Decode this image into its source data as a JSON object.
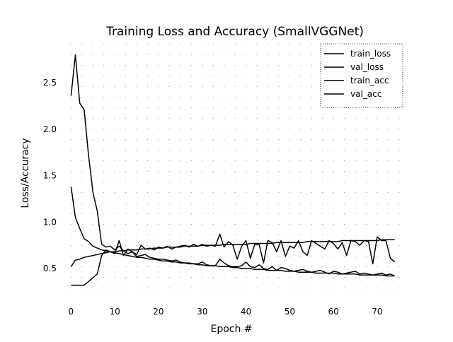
{
  "chart_data": {
    "type": "line",
    "title": "Training Loss and Accuracy (SmallVGGNet)",
    "xlabel": "Epoch #",
    "ylabel": "Loss/Accuracy",
    "xlim": [
      -2,
      76
    ],
    "ylim": [
      0.18,
      2.92
    ],
    "xticks": [
      0,
      10,
      20,
      30,
      40,
      50,
      60,
      70
    ],
    "yticks": [
      0.5,
      1.0,
      1.5,
      2.0,
      2.5
    ],
    "grid": "dotted",
    "legend": "upper right",
    "line_color": "#000000",
    "series": [
      {
        "name": "train_loss",
        "x": [
          0,
          1,
          2,
          3,
          4,
          5,
          6,
          7,
          8,
          9,
          10,
          11,
          12,
          13,
          14,
          15,
          16,
          17,
          18,
          19,
          20,
          21,
          22,
          23,
          24,
          25,
          26,
          27,
          28,
          29,
          30,
          31,
          32,
          33,
          34,
          35,
          36,
          37,
          38,
          39,
          40,
          41,
          42,
          43,
          44,
          45,
          46,
          47,
          48,
          49,
          50,
          51,
          52,
          53,
          54,
          55,
          56,
          57,
          58,
          59,
          60,
          61,
          62,
          63,
          64,
          65,
          66,
          67,
          68,
          69,
          70,
          71,
          72,
          73,
          74
        ],
        "values": [
          1.38,
          1.05,
          0.93,
          0.82,
          0.79,
          0.74,
          0.72,
          0.7,
          0.69,
          0.68,
          0.67,
          0.66,
          0.65,
          0.64,
          0.63,
          0.62,
          0.62,
          0.61,
          0.6,
          0.6,
          0.59,
          0.58,
          0.58,
          0.57,
          0.57,
          0.56,
          0.56,
          0.55,
          0.55,
          0.54,
          0.54,
          0.53,
          0.53,
          0.53,
          0.52,
          0.52,
          0.52,
          0.51,
          0.51,
          0.5,
          0.5,
          0.5,
          0.49,
          0.49,
          0.49,
          0.48,
          0.48,
          0.48,
          0.48,
          0.47,
          0.47,
          0.47,
          0.46,
          0.46,
          0.46,
          0.46,
          0.45,
          0.45,
          0.45,
          0.45,
          0.45,
          0.44,
          0.44,
          0.44,
          0.44,
          0.44,
          0.43,
          0.43,
          0.43,
          0.43,
          0.43,
          0.43,
          0.42,
          0.42,
          0.42
        ]
      },
      {
        "name": "val_loss",
        "x": [
          0,
          1,
          2,
          3,
          4,
          5,
          6,
          7,
          8,
          9,
          10,
          11,
          12,
          13,
          14,
          15,
          16,
          17,
          18,
          19,
          20,
          21,
          22,
          23,
          24,
          25,
          26,
          27,
          28,
          29,
          30,
          31,
          32,
          33,
          34,
          35,
          36,
          37,
          38,
          39,
          40,
          41,
          42,
          43,
          44,
          45,
          46,
          47,
          48,
          49,
          50,
          51,
          52,
          53,
          54,
          55,
          56,
          57,
          58,
          59,
          60,
          61,
          62,
          63,
          64,
          65,
          66,
          67,
          68,
          69,
          70,
          71,
          72,
          73,
          74
        ],
        "values": [
          2.36,
          2.8,
          2.28,
          2.21,
          1.72,
          1.32,
          1.12,
          0.76,
          0.73,
          0.74,
          0.7,
          0.74,
          0.69,
          0.66,
          0.68,
          0.63,
          0.64,
          0.65,
          0.62,
          0.61,
          0.6,
          0.6,
          0.59,
          0.58,
          0.59,
          0.57,
          0.56,
          0.56,
          0.55,
          0.55,
          0.57,
          0.54,
          0.53,
          0.53,
          0.6,
          0.56,
          0.53,
          0.52,
          0.52,
          0.53,
          0.57,
          0.52,
          0.51,
          0.54,
          0.5,
          0.49,
          0.52,
          0.48,
          0.51,
          0.5,
          0.48,
          0.47,
          0.48,
          0.49,
          0.47,
          0.46,
          0.47,
          0.48,
          0.46,
          0.44,
          0.47,
          0.46,
          0.44,
          0.45,
          0.46,
          0.47,
          0.44,
          0.45,
          0.44,
          0.43,
          0.44,
          0.45,
          0.43,
          0.44,
          0.42
        ]
      },
      {
        "name": "train_acc",
        "x": [
          0,
          1,
          2,
          3,
          4,
          5,
          6,
          7,
          8,
          9,
          10,
          11,
          12,
          13,
          14,
          15,
          16,
          17,
          18,
          19,
          20,
          21,
          22,
          23,
          24,
          25,
          26,
          27,
          28,
          29,
          30,
          31,
          32,
          33,
          34,
          35,
          36,
          37,
          38,
          39,
          40,
          41,
          42,
          43,
          44,
          45,
          46,
          47,
          48,
          49,
          50,
          51,
          52,
          53,
          54,
          55,
          56,
          57,
          58,
          59,
          60,
          61,
          62,
          63,
          64,
          65,
          66,
          67,
          68,
          69,
          70,
          71,
          72,
          73,
          74
        ],
        "values": [
          0.52,
          0.59,
          0.6,
          0.62,
          0.63,
          0.64,
          0.65,
          0.66,
          0.67,
          0.68,
          0.68,
          0.69,
          0.69,
          0.7,
          0.7,
          0.7,
          0.71,
          0.71,
          0.71,
          0.72,
          0.72,
          0.72,
          0.73,
          0.73,
          0.73,
          0.73,
          0.74,
          0.74,
          0.74,
          0.74,
          0.75,
          0.75,
          0.75,
          0.75,
          0.75,
          0.76,
          0.76,
          0.76,
          0.76,
          0.76,
          0.76,
          0.77,
          0.77,
          0.77,
          0.77,
          0.77,
          0.77,
          0.78,
          0.78,
          0.78,
          0.78,
          0.78,
          0.78,
          0.78,
          0.79,
          0.79,
          0.79,
          0.79,
          0.79,
          0.79,
          0.79,
          0.79,
          0.8,
          0.8,
          0.8,
          0.8,
          0.8,
          0.8,
          0.8,
          0.8,
          0.8,
          0.81,
          0.81,
          0.81,
          0.81
        ]
      },
      {
        "name": "val_acc",
        "x": [
          0,
          1,
          2,
          3,
          4,
          5,
          6,
          7,
          8,
          9,
          10,
          11,
          12,
          13,
          14,
          15,
          16,
          17,
          18,
          19,
          20,
          21,
          22,
          23,
          24,
          25,
          26,
          27,
          28,
          29,
          30,
          31,
          32,
          33,
          34,
          35,
          36,
          37,
          38,
          39,
          40,
          41,
          42,
          43,
          44,
          45,
          46,
          47,
          48,
          49,
          50,
          51,
          52,
          53,
          54,
          55,
          56,
          57,
          58,
          59,
          60,
          61,
          62,
          63,
          64,
          65,
          66,
          67,
          68,
          69,
          70,
          71,
          72,
          73,
          74
        ],
        "values": [
          0.32,
          0.32,
          0.32,
          0.32,
          0.36,
          0.4,
          0.44,
          0.64,
          0.7,
          0.68,
          0.66,
          0.8,
          0.64,
          0.71,
          0.68,
          0.65,
          0.75,
          0.71,
          0.72,
          0.7,
          0.73,
          0.72,
          0.74,
          0.71,
          0.73,
          0.74,
          0.75,
          0.73,
          0.76,
          0.74,
          0.76,
          0.74,
          0.75,
          0.74,
          0.87,
          0.73,
          0.79,
          0.75,
          0.6,
          0.74,
          0.8,
          0.61,
          0.76,
          0.76,
          0.56,
          0.8,
          0.78,
          0.68,
          0.8,
          0.63,
          0.74,
          0.72,
          0.8,
          0.68,
          0.64,
          0.8,
          0.77,
          0.74,
          0.71,
          0.8,
          0.77,
          0.71,
          0.78,
          0.64,
          0.8,
          0.79,
          0.75,
          0.8,
          0.79,
          0.55,
          0.84,
          0.8,
          0.8,
          0.61,
          0.57
        ]
      }
    ]
  }
}
